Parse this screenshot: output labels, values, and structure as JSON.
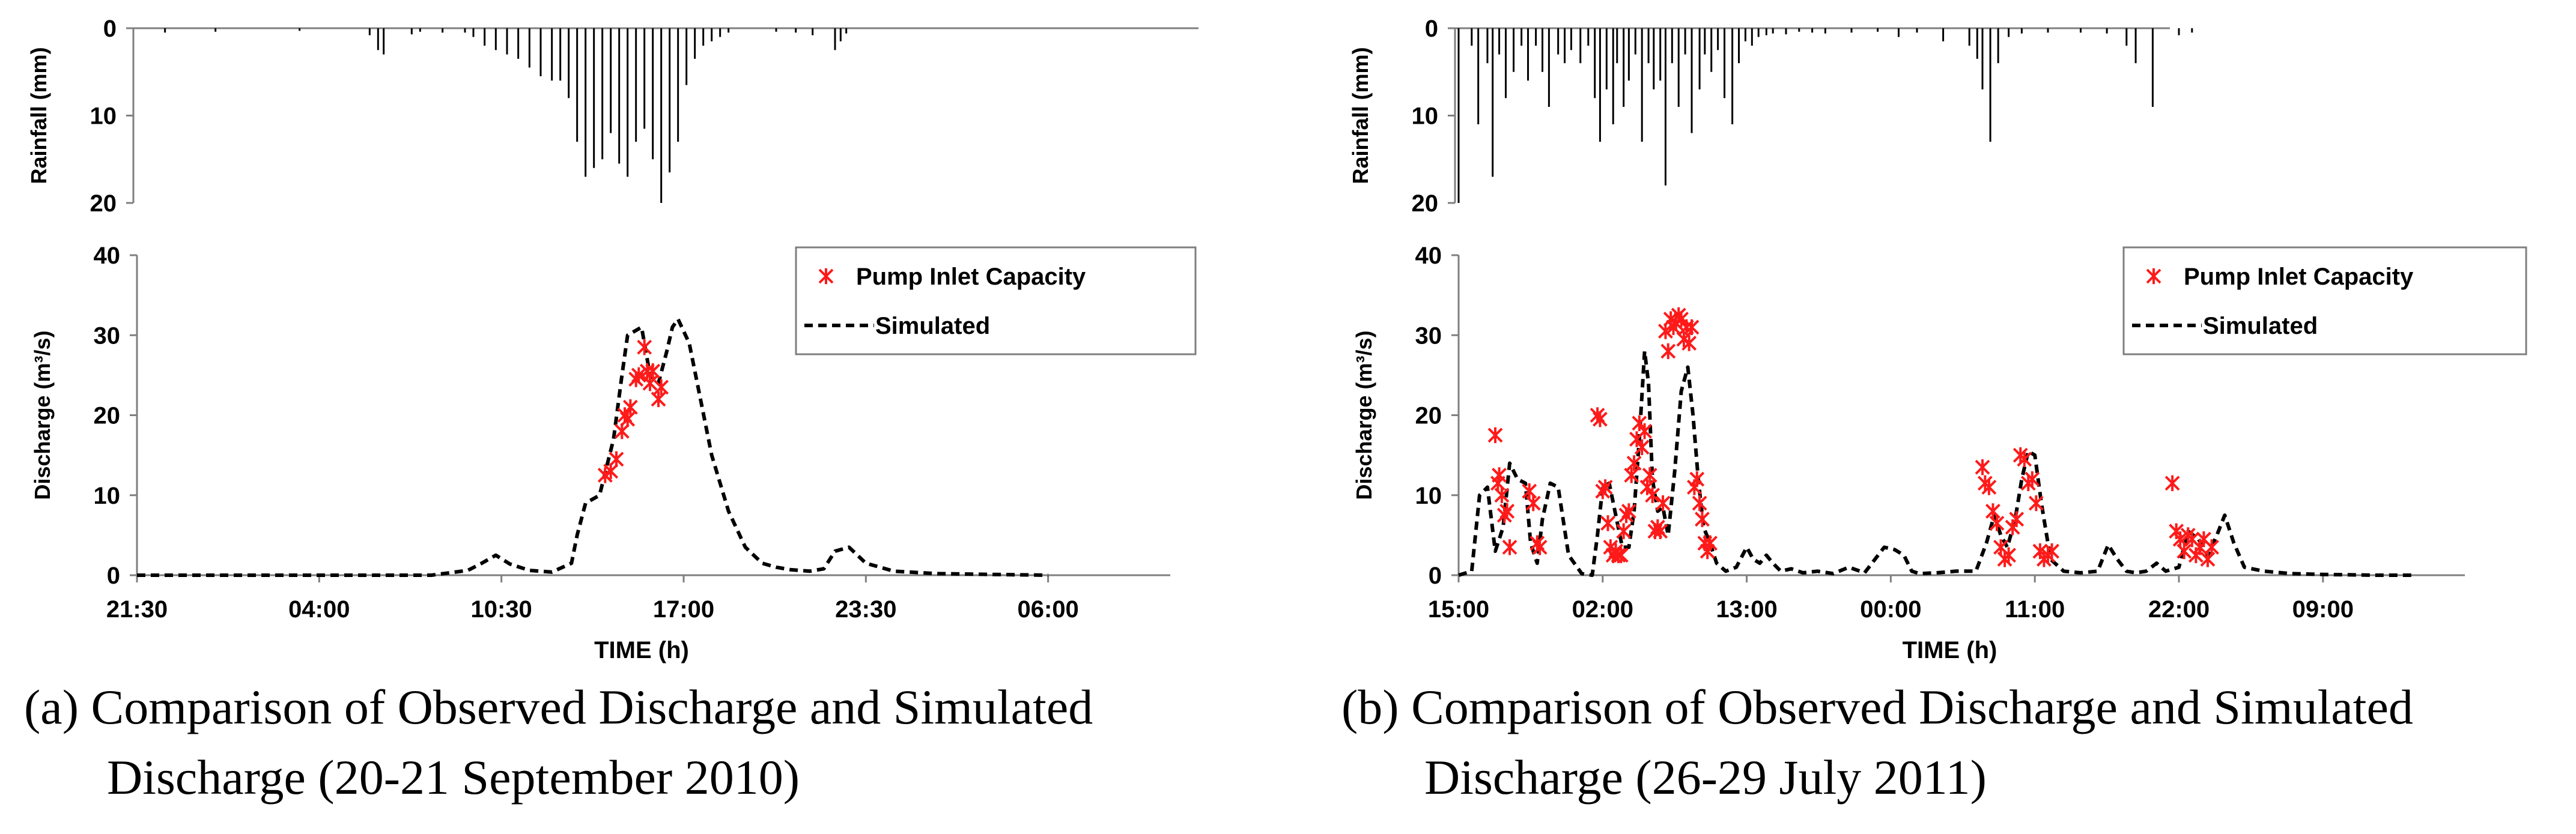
{
  "chart_data": [
    {
      "id": "a",
      "caption_line1": "(a) Comparison of Observed Discharge and Simulated",
      "caption_line2": "Discharge (20-21 September 2010)",
      "rain": {
        "type": "bar",
        "ylabel": "Rainfall (mm)",
        "ylim": [
          20,
          0
        ],
        "yticks": [
          "0",
          "10",
          "20"
        ],
        "x_hours": [
          -1.5,
          0.3,
          3.3,
          5.8,
          6.1,
          6.3,
          7.3,
          7.6,
          8.4,
          9.2,
          9.5,
          9.9,
          10.3,
          10.7,
          11.1,
          11.5,
          11.9,
          12.3,
          12.6,
          12.9,
          13.2,
          13.5,
          13.8,
          14.1,
          14.4,
          14.7,
          15.0,
          15.3,
          15.6,
          15.9,
          16.2,
          16.5,
          16.8,
          17.1,
          17.4,
          17.7,
          18.0,
          18.3,
          18.6,
          20.3,
          21.0,
          21.6,
          22.4,
          22.6,
          22.8
        ],
        "values": [
          0.5,
          0.4,
          0.3,
          0.8,
          2.5,
          3.0,
          0.7,
          0.4,
          0.5,
          0.5,
          1.0,
          2.0,
          2.5,
          3.0,
          3.5,
          4.5,
          5.5,
          6.0,
          6.0,
          8.0,
          13.0,
          17.0,
          16.0,
          15.0,
          12.0,
          15.5,
          17.0,
          13.0,
          11.5,
          15.0,
          20.0,
          16.5,
          13.0,
          6.5,
          3.5,
          2.0,
          1.5,
          1.0,
          0.5,
          0.4,
          0.5,
          0.8,
          2.5,
          1.5,
          0.6
        ]
      },
      "discharge": {
        "xlabel": "TIME (h)",
        "ylabel": "Discharge (m³/s)",
        "ylim": [
          0,
          40
        ],
        "yticks": [
          "0",
          "10",
          "20",
          "30",
          "40"
        ],
        "xlim_hours": [
          -2.5,
          33.5
        ],
        "xticks_hours": [
          -2.5,
          4,
          10.5,
          17,
          23.5,
          30
        ],
        "xticks_labels": [
          "21:30",
          "04:00",
          "10:30",
          "17:00",
          "23:30",
          "06:00"
        ],
        "legend_position": "top-right",
        "legend_observed": "Pump Inlet Capacity",
        "legend_simulated": "Simulated",
        "simulated": {
          "x_hours": [
            -2.5,
            8.0,
            9.3,
            9.8,
            10.3,
            10.8,
            11.5,
            12.3,
            13.0,
            13.2,
            13.5,
            14.0,
            14.5,
            14.8,
            15.0,
            15.5,
            15.8,
            16.1,
            16.4,
            16.6,
            16.8,
            17.2,
            17.6,
            18.0,
            18.6,
            19.2,
            19.8,
            20.3,
            20.8,
            21.5,
            22.0,
            22.4,
            22.9,
            23.5,
            24.5,
            26.0,
            28.0,
            30.0
          ],
          "y": [
            0.0,
            0.0,
            0.6,
            1.5,
            2.5,
            1.4,
            0.6,
            0.4,
            1.5,
            5.0,
            9.0,
            10.0,
            17.0,
            25.0,
            30.0,
            31.0,
            25.0,
            24.0,
            28.0,
            31.0,
            32.0,
            29.0,
            22.0,
            15.0,
            8.0,
            3.5,
            1.5,
            1.0,
            0.7,
            0.5,
            0.8,
            3.0,
            3.5,
            1.5,
            0.5,
            0.2,
            0.1,
            0.0
          ]
        },
        "observed": {
          "x_hours": [
            14.2,
            14.4,
            14.6,
            14.8,
            14.9,
            15.0,
            15.1,
            15.3,
            15.4,
            15.6,
            15.7,
            15.8,
            15.9,
            16.1,
            16.2
          ],
          "y": [
            12.5,
            13.0,
            14.5,
            18.0,
            20.0,
            19.5,
            21.0,
            24.5,
            25.0,
            28.5,
            25.5,
            24.0,
            25.5,
            22.0,
            23.5
          ]
        }
      }
    },
    {
      "id": "b",
      "caption_line1": "(b) Comparison of Observed Discharge and Simulated",
      "caption_line2": "Discharge (26-29 July 2011)",
      "rain": {
        "type": "bar",
        "ylabel": "Rainfall (mm)",
        "ylim": [
          20,
          0
        ],
        "yticks": [
          "0",
          "10",
          "20"
        ],
        "x_hours": [
          15.0,
          16.0,
          16.5,
          17.2,
          17.6,
          18.1,
          18.6,
          19.2,
          19.8,
          20.3,
          20.9,
          21.4,
          21.9,
          22.6,
          23.1,
          23.6,
          24.3,
          24.9,
          25.4,
          25.8,
          26.3,
          26.8,
          27.1,
          27.6,
          28.0,
          28.5,
          29.0,
          29.5,
          29.9,
          30.4,
          30.8,
          31.3,
          31.8,
          32.3,
          32.8,
          33.4,
          33.8,
          34.3,
          34.8,
          35.3,
          35.9,
          36.4,
          36.9,
          37.4,
          37.9,
          38.5,
          39.0,
          40.0,
          41.0,
          42.0,
          43.0,
          45.0,
          47.0,
          48.6,
          50.0,
          52.0,
          54.0,
          54.6,
          55.0,
          55.6,
          56.2,
          57.0,
          58.0,
          60.0,
          62.5,
          64.5,
          66.0,
          66.7,
          68.0,
          70.0,
          71.0
        ],
        "values": [
          20.0,
          2.0,
          11.0,
          4.0,
          17.0,
          3.0,
          8.0,
          5.0,
          2.0,
          6.0,
          2.0,
          5.0,
          9.0,
          3.0,
          4.0,
          2.5,
          4.0,
          2.0,
          8.0,
          13.0,
          7.0,
          11.0,
          4.0,
          9.0,
          6.0,
          3.0,
          13.0,
          4.0,
          7.0,
          6.0,
          18.0,
          4.0,
          9.0,
          3.0,
          12.0,
          7.0,
          3.0,
          5.0,
          2.5,
          8.0,
          11.0,
          4.0,
          1.5,
          2.0,
          1.0,
          0.8,
          0.6,
          0.7,
          0.4,
          0.5,
          0.6,
          0.5,
          0.4,
          1.0,
          0.5,
          1.5,
          2.0,
          3.5,
          7.0,
          13.0,
          4.0,
          1.0,
          0.6,
          0.5,
          0.5,
          0.6,
          2.0,
          4.0,
          9.0,
          0.8,
          0.5
        ]
      },
      "discharge": {
        "xlabel": "TIME (h)",
        "ylabel": "Discharge (m³/s)",
        "ylim": [
          0,
          40
        ],
        "yticks": [
          "0",
          "10",
          "20",
          "30",
          "40"
        ],
        "xlim_hours": [
          15.0,
          90.0
        ],
        "xticks_hours": [
          15,
          26,
          37,
          48,
          59,
          70,
          81
        ],
        "xticks_labels": [
          "15:00",
          "02:00",
          "13:00",
          "00:00",
          "11:00",
          "22:00",
          "09:00"
        ],
        "legend_position": "top-right",
        "legend_observed": "Pump Inlet Capacity",
        "legend_simulated": "Simulated",
        "simulated": {
          "x_hours": [
            15.0,
            16.0,
            16.6,
            17.2,
            17.8,
            18.4,
            18.9,
            19.5,
            20.1,
            20.5,
            21.0,
            21.4,
            22.0,
            22.6,
            23.4,
            24.4,
            25.2,
            25.6,
            26.0,
            26.5,
            27.0,
            27.5,
            28.0,
            28.4,
            28.8,
            29.2,
            29.5,
            29.8,
            30.2,
            30.6,
            31.0,
            31.5,
            32.0,
            32.5,
            32.9,
            33.3,
            33.7,
            34.2,
            34.7,
            35.4,
            36.2,
            37.0,
            37.5,
            38.0,
            38.5,
            39.0,
            39.6,
            40.4,
            41.3,
            42.4,
            43.6,
            44.8,
            46.0,
            47.5,
            48.3,
            49.0,
            49.6,
            50.2,
            51.5,
            53.0,
            54.5,
            55.3,
            55.9,
            56.4,
            56.9,
            57.5,
            58.0,
            58.5,
            59.0,
            59.5,
            60.2,
            61.2,
            62.5,
            63.8,
            64.6,
            65.3,
            66.0,
            66.7,
            67.5,
            68.3,
            69.0,
            70.0,
            70.7,
            71.5,
            72.2,
            72.9,
            73.5,
            74.2,
            75.0,
            76.5,
            78.5,
            81.0,
            85.0,
            88.0
          ],
          "y": [
            0.0,
            0.5,
            10.0,
            11.0,
            3.0,
            6.0,
            14.0,
            12.0,
            11.5,
            4.0,
            1.5,
            7.0,
            11.5,
            11.0,
            2.5,
            0.2,
            0.0,
            5.0,
            11.0,
            11.5,
            7.5,
            3.5,
            3.5,
            8.0,
            17.0,
            28.0,
            24.0,
            12.0,
            8.0,
            8.5,
            5.0,
            13.0,
            23.0,
            26.0,
            20.0,
            12.0,
            6.0,
            4.0,
            1.5,
            0.5,
            1.0,
            3.5,
            2.0,
            1.5,
            2.5,
            1.5,
            0.5,
            0.8,
            0.3,
            0.5,
            0.2,
            1.0,
            0.3,
            3.5,
            3.2,
            2.5,
            0.5,
            0.2,
            0.3,
            0.5,
            0.5,
            4.0,
            7.5,
            5.0,
            3.5,
            7.0,
            12.0,
            15.5,
            15.0,
            9.0,
            2.0,
            0.5,
            0.3,
            0.5,
            3.8,
            2.0,
            0.5,
            0.3,
            0.5,
            1.5,
            0.5,
            1.0,
            5.5,
            4.5,
            2.5,
            5.0,
            7.5,
            4.0,
            1.0,
            0.5,
            0.2,
            0.1,
            0.0,
            0.0
          ]
        },
        "observed": {
          "x_hours": [
            17.8,
            18.0,
            18.1,
            18.3,
            18.5,
            18.7,
            18.9,
            20.4,
            20.7,
            21.0,
            21.2,
            25.6,
            25.8,
            26.0,
            26.2,
            26.4,
            26.6,
            26.8,
            27.0,
            27.2,
            27.4,
            27.6,
            27.8,
            28.0,
            28.2,
            28.4,
            28.6,
            28.8,
            29.0,
            29.2,
            29.4,
            29.6,
            29.8,
            30.0,
            30.2,
            30.4,
            30.6,
            30.8,
            31.0,
            31.2,
            31.4,
            31.6,
            31.8,
            32.0,
            32.2,
            32.4,
            32.6,
            32.8,
            33.0,
            33.2,
            33.4,
            33.6,
            33.8,
            34.0,
            34.2,
            55.0,
            55.2,
            55.5,
            55.8,
            56.1,
            56.4,
            56.7,
            57.0,
            57.3,
            57.6,
            57.9,
            58.2,
            58.5,
            58.8,
            59.1,
            59.4,
            59.7,
            60.0,
            60.3,
            69.5,
            69.8,
            70.1,
            70.4,
            70.7,
            71.0,
            71.3,
            71.6,
            71.9,
            72.2,
            72.5
          ],
          "y": [
            17.5,
            11.5,
            12.5,
            10.0,
            7.5,
            8.0,
            3.5,
            10.5,
            9.0,
            4.0,
            3.5,
            20.0,
            19.5,
            10.5,
            11.0,
            6.5,
            3.5,
            2.5,
            3.0,
            2.5,
            2.5,
            5.5,
            7.5,
            8.0,
            12.5,
            14.0,
            17.0,
            19.0,
            16.0,
            18.0,
            11.0,
            12.5,
            10.0,
            5.5,
            6.0,
            5.5,
            9.0,
            30.5,
            28.0,
            32.0,
            31.0,
            31.5,
            32.5,
            32.0,
            29.5,
            31.0,
            29.0,
            31.0,
            11.0,
            12.0,
            9.0,
            7.0,
            4.0,
            3.0,
            4.0,
            13.5,
            11.5,
            11.0,
            8.0,
            6.5,
            3.5,
            2.0,
            2.5,
            6.0,
            7.0,
            15.0,
            14.5,
            11.5,
            12.0,
            9.0,
            3.0,
            2.0,
            2.5,
            3.0,
            11.5,
            5.5,
            4.5,
            3.0,
            5.0,
            4.5,
            2.5,
            3.5,
            4.5,
            2.0,
            3.5
          ]
        }
      }
    }
  ]
}
